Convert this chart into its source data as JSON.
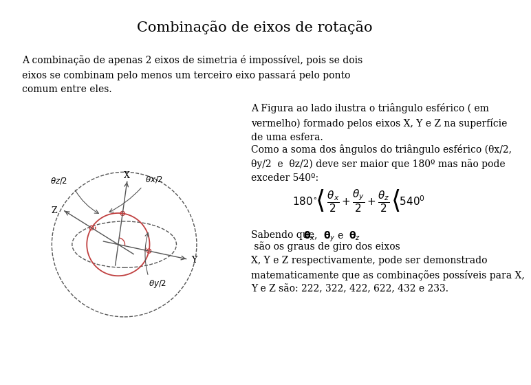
{
  "title": "Combinação de eixos de rotação",
  "title_fontsize": 15,
  "text1": "A combinação de apenas 2 eixos de simetria é impossível, pois se dois\neixos se combinam pelo menos um terceiro eixo passará pelo ponto\ncomum entre eles.",
  "text_right1": "A Figura ao lado ilustra o triângulo esférico ( em\nvermelho) formado pelos eixos X, Y e Z na superfície\nde uma esfera.",
  "text_right2": "Como a soma dos ângulos do triângulo esférico (θx/2,\nθy/2  e  θz/2) deve ser maior que 180º mas não pode\nexceder 540º:",
  "text_right3": "Sabendo que θx, θy e θz são os graus de giro dos eixos\nX, Y e Z respectivamente, pode ser demonstrado\nmatematicamente que as combinações possíveis para X,\nY e Z são: 222, 322, 422, 622, 432 e 233.",
  "bg_color": "#ffffff",
  "text_color": "#000000",
  "gray_color": "#555555",
  "red_color": "#c04040"
}
